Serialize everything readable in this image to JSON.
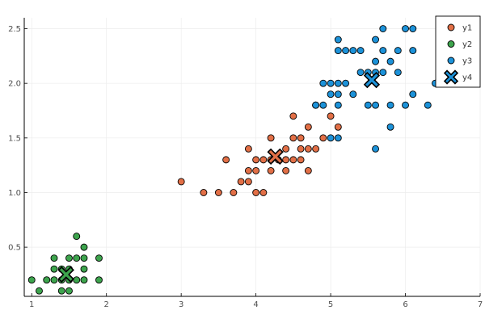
{
  "chart_data": {
    "type": "scatter",
    "title": "",
    "xlabel": "",
    "ylabel": "",
    "xlim": [
      0.9,
      7.0
    ],
    "ylim": [
      0.05,
      2.6
    ],
    "xticks": [
      1,
      2,
      3,
      4,
      5,
      6,
      7
    ],
    "yticks": [
      0.5,
      1.0,
      1.5,
      2.0,
      2.5
    ],
    "xtick_labels": [
      "1",
      "2",
      "3",
      "4",
      "5",
      "6",
      "7"
    ],
    "ytick_labels": [
      "0.5",
      "1.0",
      "1.5",
      "2.0",
      "2.5"
    ],
    "grid": true,
    "legend_position": "top-right",
    "series": [
      {
        "name": "y1",
        "color": "#e26f46",
        "marker": "circle",
        "points": [
          [
            3.0,
            1.1
          ],
          [
            3.3,
            1.0
          ],
          [
            3.5,
            1.0
          ],
          [
            3.6,
            1.3
          ],
          [
            3.7,
            1.0
          ],
          [
            3.8,
            1.1
          ],
          [
            3.9,
            1.1
          ],
          [
            3.9,
            1.2
          ],
          [
            3.9,
            1.4
          ],
          [
            4.0,
            1.0
          ],
          [
            4.0,
            1.2
          ],
          [
            4.0,
            1.3
          ],
          [
            4.1,
            1.0
          ],
          [
            4.1,
            1.3
          ],
          [
            4.2,
            1.2
          ],
          [
            4.2,
            1.3
          ],
          [
            4.2,
            1.5
          ],
          [
            4.3,
            1.3
          ],
          [
            4.4,
            1.2
          ],
          [
            4.4,
            1.3
          ],
          [
            4.4,
            1.4
          ],
          [
            4.5,
            1.3
          ],
          [
            4.5,
            1.5
          ],
          [
            4.5,
            1.7
          ],
          [
            4.6,
            1.3
          ],
          [
            4.6,
            1.4
          ],
          [
            4.6,
            1.5
          ],
          [
            4.7,
            1.2
          ],
          [
            4.7,
            1.4
          ],
          [
            4.7,
            1.6
          ],
          [
            4.8,
            1.4
          ],
          [
            4.8,
            1.8
          ],
          [
            4.9,
            1.5
          ],
          [
            5.0,
            1.7
          ],
          [
            5.1,
            1.6
          ]
        ]
      },
      {
        "name": "y2",
        "color": "#3da44d",
        "marker": "circle",
        "points": [
          [
            1.0,
            0.2
          ],
          [
            1.1,
            0.1
          ],
          [
            1.2,
            0.2
          ],
          [
            1.3,
            0.2
          ],
          [
            1.3,
            0.3
          ],
          [
            1.3,
            0.4
          ],
          [
            1.4,
            0.1
          ],
          [
            1.4,
            0.2
          ],
          [
            1.4,
            0.3
          ],
          [
            1.5,
            0.1
          ],
          [
            1.5,
            0.2
          ],
          [
            1.5,
            0.3
          ],
          [
            1.5,
            0.4
          ],
          [
            1.6,
            0.2
          ],
          [
            1.6,
            0.4
          ],
          [
            1.6,
            0.6
          ],
          [
            1.7,
            0.2
          ],
          [
            1.7,
            0.3
          ],
          [
            1.7,
            0.4
          ],
          [
            1.7,
            0.5
          ],
          [
            1.9,
            0.2
          ],
          [
            1.9,
            0.4
          ]
        ]
      },
      {
        "name": "y3",
        "color": "#1c92d9",
        "marker": "circle",
        "points": [
          [
            4.8,
            1.8
          ],
          [
            4.9,
            1.8
          ],
          [
            4.9,
            2.0
          ],
          [
            5.0,
            1.5
          ],
          [
            5.0,
            1.9
          ],
          [
            5.0,
            2.0
          ],
          [
            5.1,
            1.5
          ],
          [
            5.1,
            1.8
          ],
          [
            5.1,
            1.9
          ],
          [
            5.1,
            2.0
          ],
          [
            5.1,
            2.3
          ],
          [
            5.1,
            2.4
          ],
          [
            5.2,
            2.0
          ],
          [
            5.2,
            2.3
          ],
          [
            5.3,
            1.9
          ],
          [
            5.3,
            2.3
          ],
          [
            5.4,
            2.1
          ],
          [
            5.4,
            2.3
          ],
          [
            5.5,
            1.8
          ],
          [
            5.5,
            2.1
          ],
          [
            5.6,
            1.4
          ],
          [
            5.6,
            1.8
          ],
          [
            5.6,
            2.1
          ],
          [
            5.6,
            2.2
          ],
          [
            5.6,
            2.4
          ],
          [
            5.7,
            2.1
          ],
          [
            5.7,
            2.3
          ],
          [
            5.7,
            2.5
          ],
          [
            5.8,
            1.6
          ],
          [
            5.8,
            1.8
          ],
          [
            5.8,
            2.2
          ],
          [
            5.9,
            2.1
          ],
          [
            5.9,
            2.3
          ],
          [
            6.0,
            1.8
          ],
          [
            6.0,
            2.5
          ],
          [
            6.1,
            1.9
          ],
          [
            6.1,
            2.3
          ],
          [
            6.1,
            2.5
          ],
          [
            6.3,
            1.8
          ],
          [
            6.4,
            2.0
          ]
        ]
      },
      {
        "name": "y4",
        "color": "#1c92d9",
        "marker": "xcross",
        "points": [
          [
            1.46,
            0.25
          ],
          [
            4.26,
            1.33
          ],
          [
            5.55,
            2.03
          ]
        ],
        "point_colors": [
          "#3da44d",
          "#e26f46",
          "#1c92d9"
        ]
      }
    ]
  }
}
